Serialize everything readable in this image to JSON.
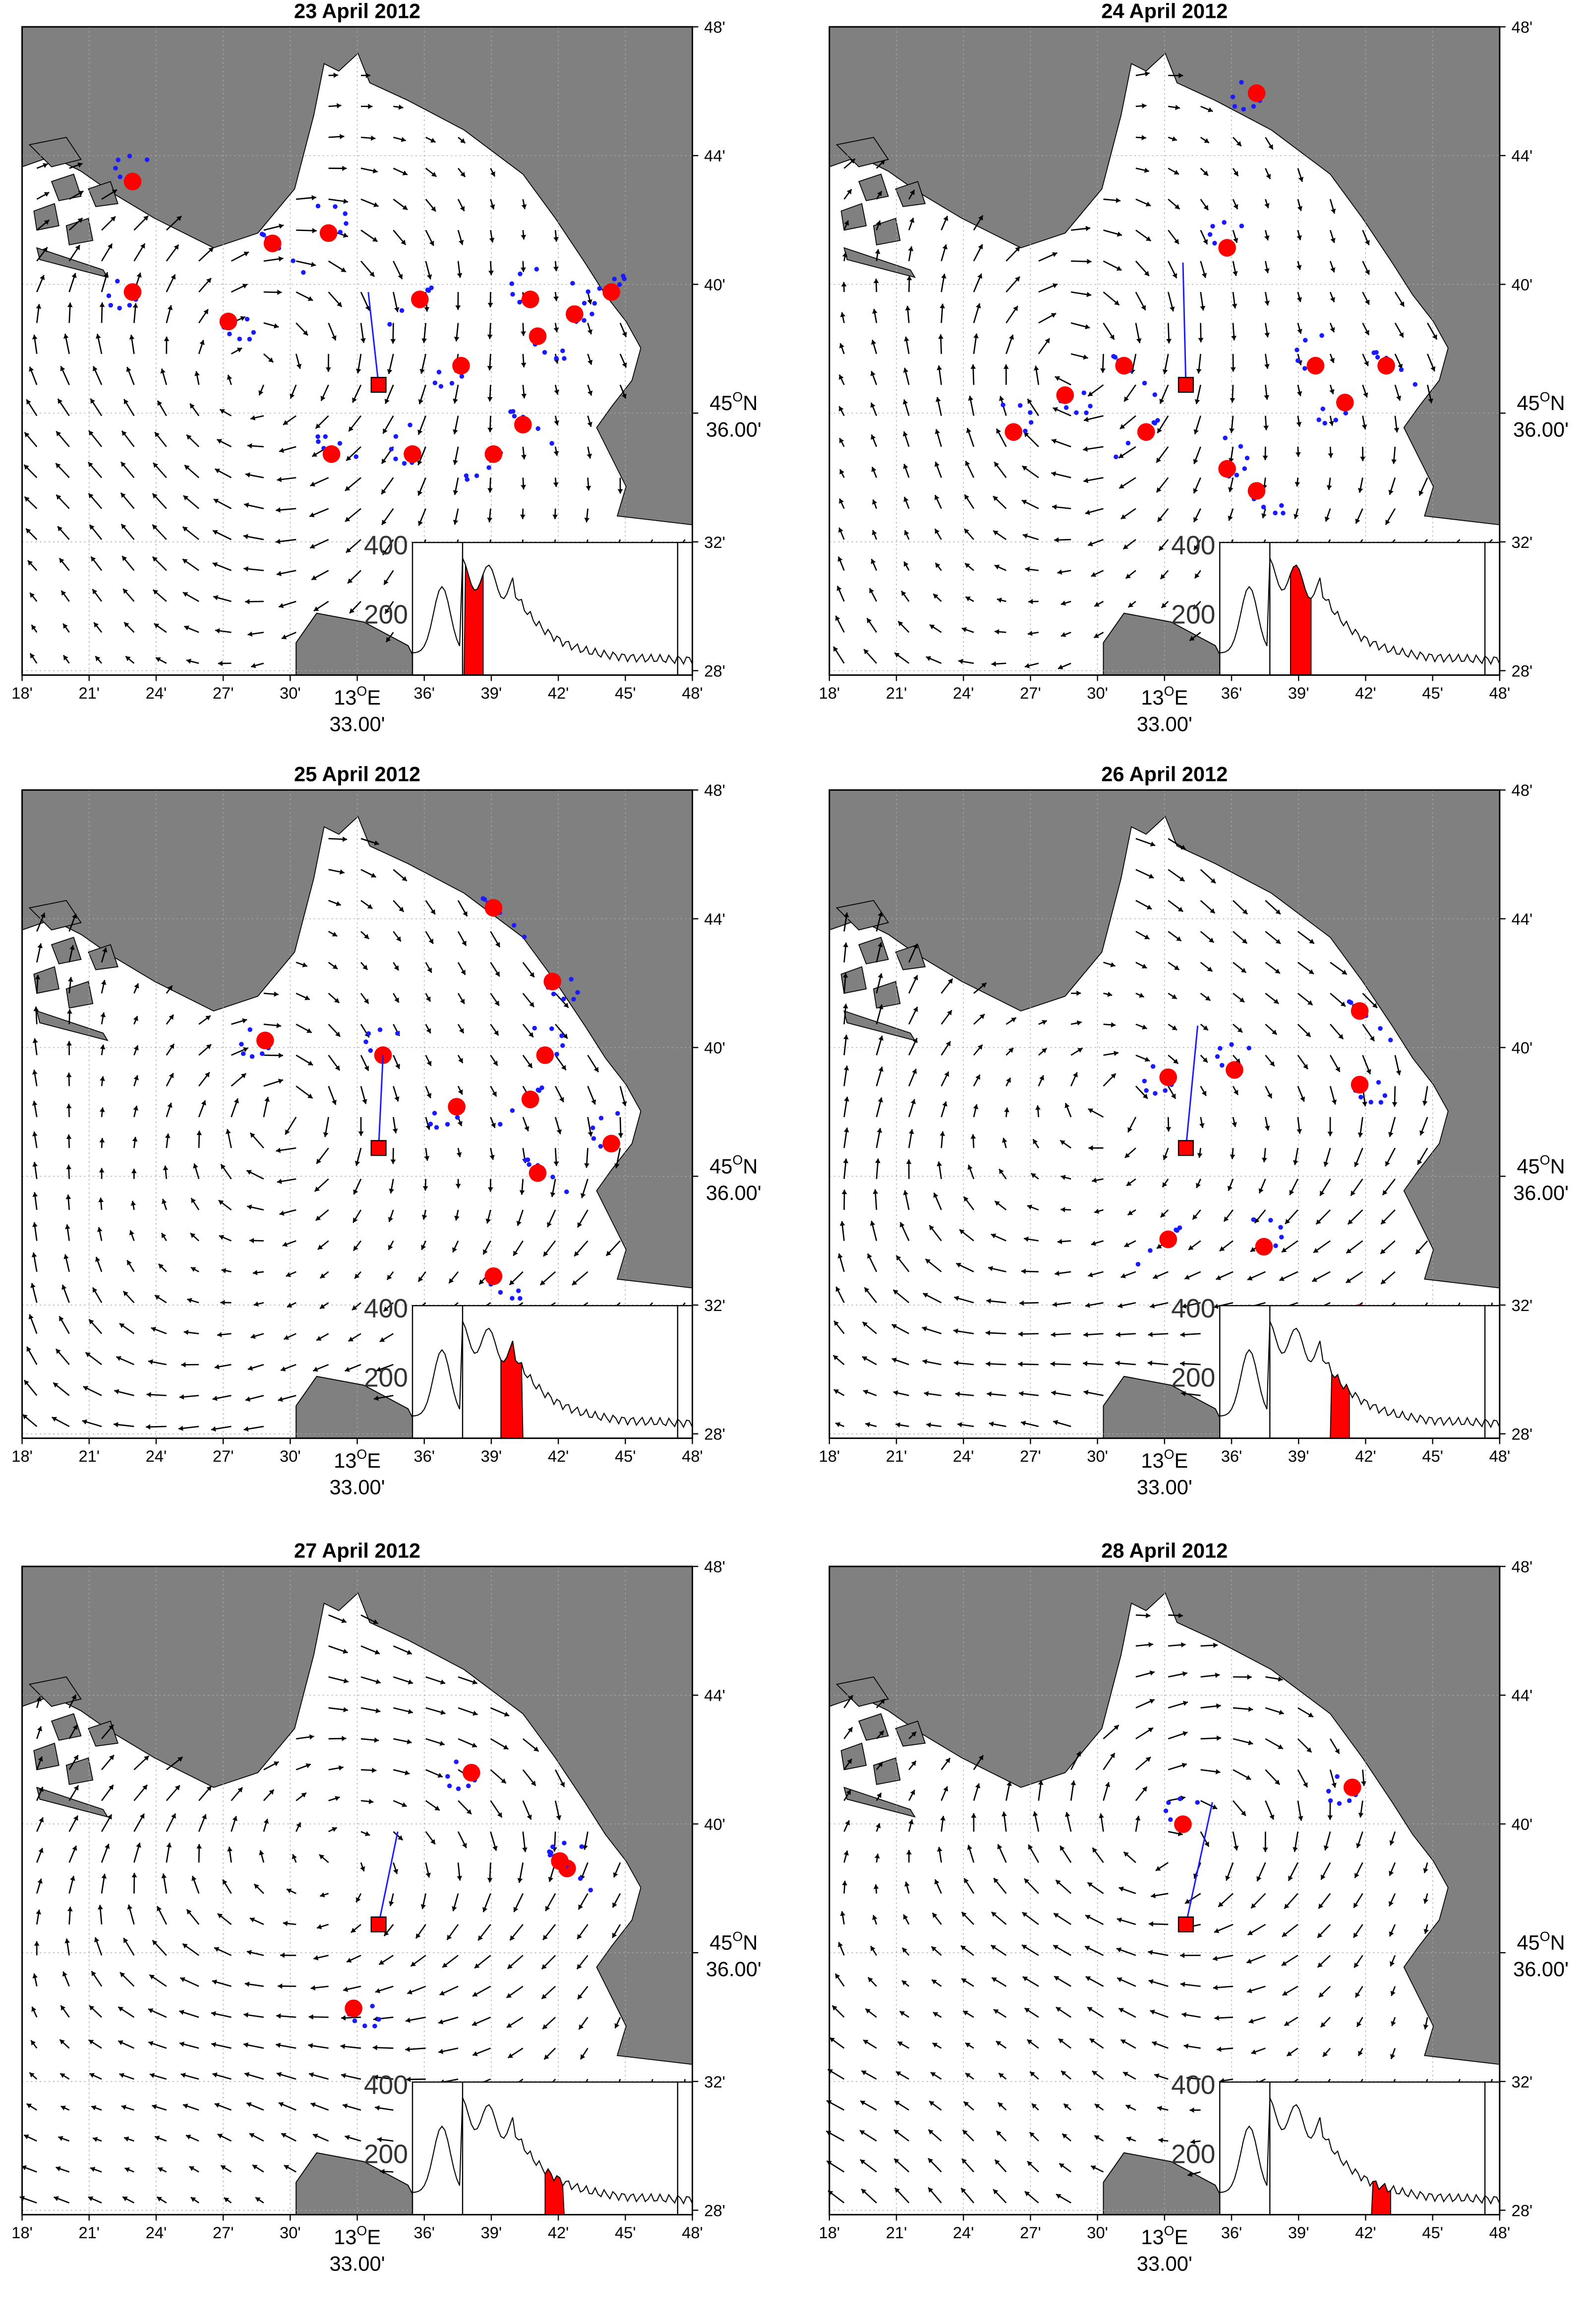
{
  "panels": [
    {
      "title": "23 April 2012"
    },
    {
      "title": "24 April 2012"
    },
    {
      "title": "25 April 2012"
    },
    {
      "title": "26 April 2012"
    },
    {
      "title": "27 April 2012"
    },
    {
      "title": "28 April 2012"
    }
  ],
  "x_axis": {
    "ticks": [
      "18'",
      "21'",
      "24'",
      "27'",
      "30'",
      null,
      "36'",
      "39'",
      "42'",
      "45'",
      "48'"
    ],
    "center": {
      "degrees": "13",
      "sup": "O",
      "hemisphere": "E",
      "minutes": "33.00'"
    }
  },
  "y_axis": {
    "ticks": [
      "48'",
      "44'",
      "40'",
      null,
      "32'",
      "28'"
    ],
    "center": {
      "degrees": "45",
      "sup": "O",
      "hemisphere": "N",
      "minutes": "36.00'"
    }
  },
  "inset": {
    "labels": [
      "400",
      "200"
    ]
  }
}
